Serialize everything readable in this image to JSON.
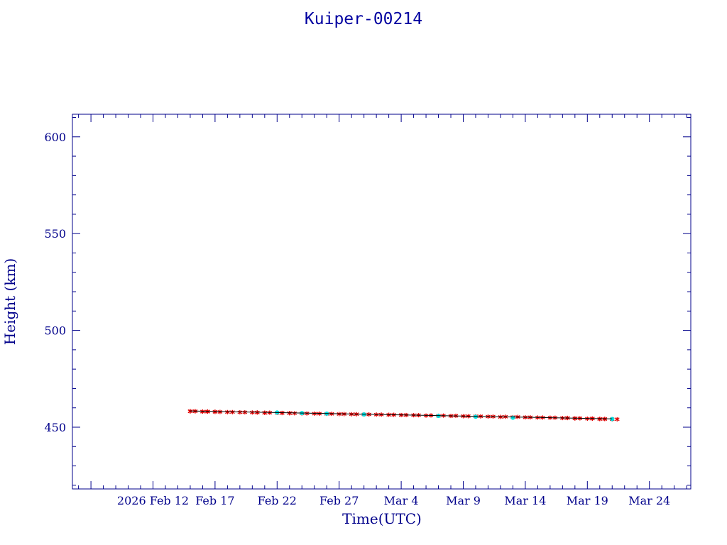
{
  "chart_data": {
    "type": "scatter",
    "title": "Kuiper-00214",
    "xlabel": "Time(UTC)",
    "ylabel": "Height (km)",
    "x_start_date": "2026-02-12",
    "x_tick_labels": [
      "2026 Feb 12",
      "Feb 17",
      "Feb 22",
      "Feb 27",
      "Mar  4",
      "Mar  9",
      "Mar 14",
      "Mar 19",
      "Mar 24"
    ],
    "y_tick_labels": [
      "450",
      "500",
      "550",
      "600"
    ],
    "ylim": [
      418,
      612
    ],
    "grid": false,
    "colors": {
      "axis": "#00008b",
      "text": "#00008b",
      "primary_points": "#e00000",
      "secondary_points": "#00e0e0",
      "fit_line": "#000000"
    },
    "series": [
      {
        "marker": "x",
        "color": "#e00000",
        "x": [
          "2026-02-15",
          "2026-02-15",
          "2026-02-15",
          "2026-02-15",
          "2026-02-15",
          "2026-02-16",
          "2026-02-16",
          "2026-02-16",
          "2026-02-16",
          "2026-02-16",
          "2026-02-17",
          "2026-02-17",
          "2026-02-17",
          "2026-02-18",
          "2026-02-18",
          "2026-02-19",
          "2026-02-19",
          "2026-02-20",
          "2026-02-20",
          "2026-02-20",
          "2026-02-21",
          "2026-02-21",
          "2026-02-21",
          "2026-02-22",
          "2026-02-22",
          "2026-02-22",
          "2026-02-23",
          "2026-02-23",
          "2026-02-23",
          "2026-02-24",
          "2026-02-24",
          "2026-02-25",
          "2026-02-25",
          "2026-02-26",
          "2026-02-26",
          "2026-02-27",
          "2026-02-27",
          "2026-02-28",
          "2026-02-28",
          "2026-03-01",
          "2026-03-01",
          "2026-03-02",
          "2026-03-02",
          "2026-03-03",
          "2026-03-03",
          "2026-03-04",
          "2026-03-04",
          "2026-03-05",
          "2026-03-05",
          "2026-03-06",
          "2026-03-06",
          "2026-03-07",
          "2026-03-07",
          "2026-03-08",
          "2026-03-08",
          "2026-03-09",
          "2026-03-09",
          "2026-03-10",
          "2026-03-10",
          "2026-03-11",
          "2026-03-11",
          "2026-03-12",
          "2026-03-12",
          "2026-03-13",
          "2026-03-13",
          "2026-03-14",
          "2026-03-14",
          "2026-03-15",
          "2026-03-15",
          "2026-03-16",
          "2026-03-16",
          "2026-03-17",
          "2026-03-17",
          "2026-03-17",
          "2026-03-18",
          "2026-03-18",
          "2026-03-18",
          "2026-03-19",
          "2026-03-19",
          "2026-03-19",
          "2026-03-20",
          "2026-03-20",
          "2026-03-20",
          "2026-03-20",
          "2026-03-21",
          "2026-03-21"
        ],
        "y": [
          458.3,
          458.3,
          458.2,
          458.2,
          458.2,
          458.1,
          458.1,
          458.1,
          458.0,
          458.0,
          458.0,
          457.9,
          457.9,
          457.8,
          457.8,
          457.7,
          457.7,
          457.6,
          457.6,
          457.6,
          457.5,
          457.5,
          457.4,
          457.4,
          457.4,
          457.3,
          457.3,
          457.2,
          457.2,
          457.1,
          457.1,
          457.0,
          457.0,
          456.9,
          456.9,
          456.8,
          456.8,
          456.7,
          456.7,
          456.6,
          456.6,
          456.5,
          456.5,
          456.4,
          456.4,
          456.3,
          456.3,
          456.2,
          456.2,
          456.1,
          456.0,
          456.0,
          455.9,
          455.9,
          455.8,
          455.7,
          455.7,
          455.6,
          455.6,
          455.5,
          455.5,
          455.4,
          455.3,
          455.3,
          455.2,
          455.1,
          455.1,
          455.0,
          455.0,
          454.9,
          454.9,
          454.8,
          454.7,
          454.7,
          454.6,
          454.6,
          454.5,
          454.5,
          454.4,
          454.4,
          454.3,
          454.3,
          454.2,
          454.2,
          454.1,
          454.1
        ]
      },
      {
        "marker": "dot",
        "color": "#00e0e0",
        "x": [
          "2026-02-22",
          "2026-02-24",
          "2026-02-26",
          "2026-03-01",
          "2026-03-07",
          "2026-03-10",
          "2026-03-13",
          "2026-03-21"
        ],
        "y": [
          457.6,
          457.3,
          457.0,
          456.6,
          455.8,
          455.4,
          454.9,
          454.2
        ]
      },
      {
        "marker": "line",
        "color": "#000000",
        "x": [
          "2026-02-15",
          "2026-03-21"
        ],
        "y": [
          458.4,
          454.3
        ]
      }
    ]
  }
}
